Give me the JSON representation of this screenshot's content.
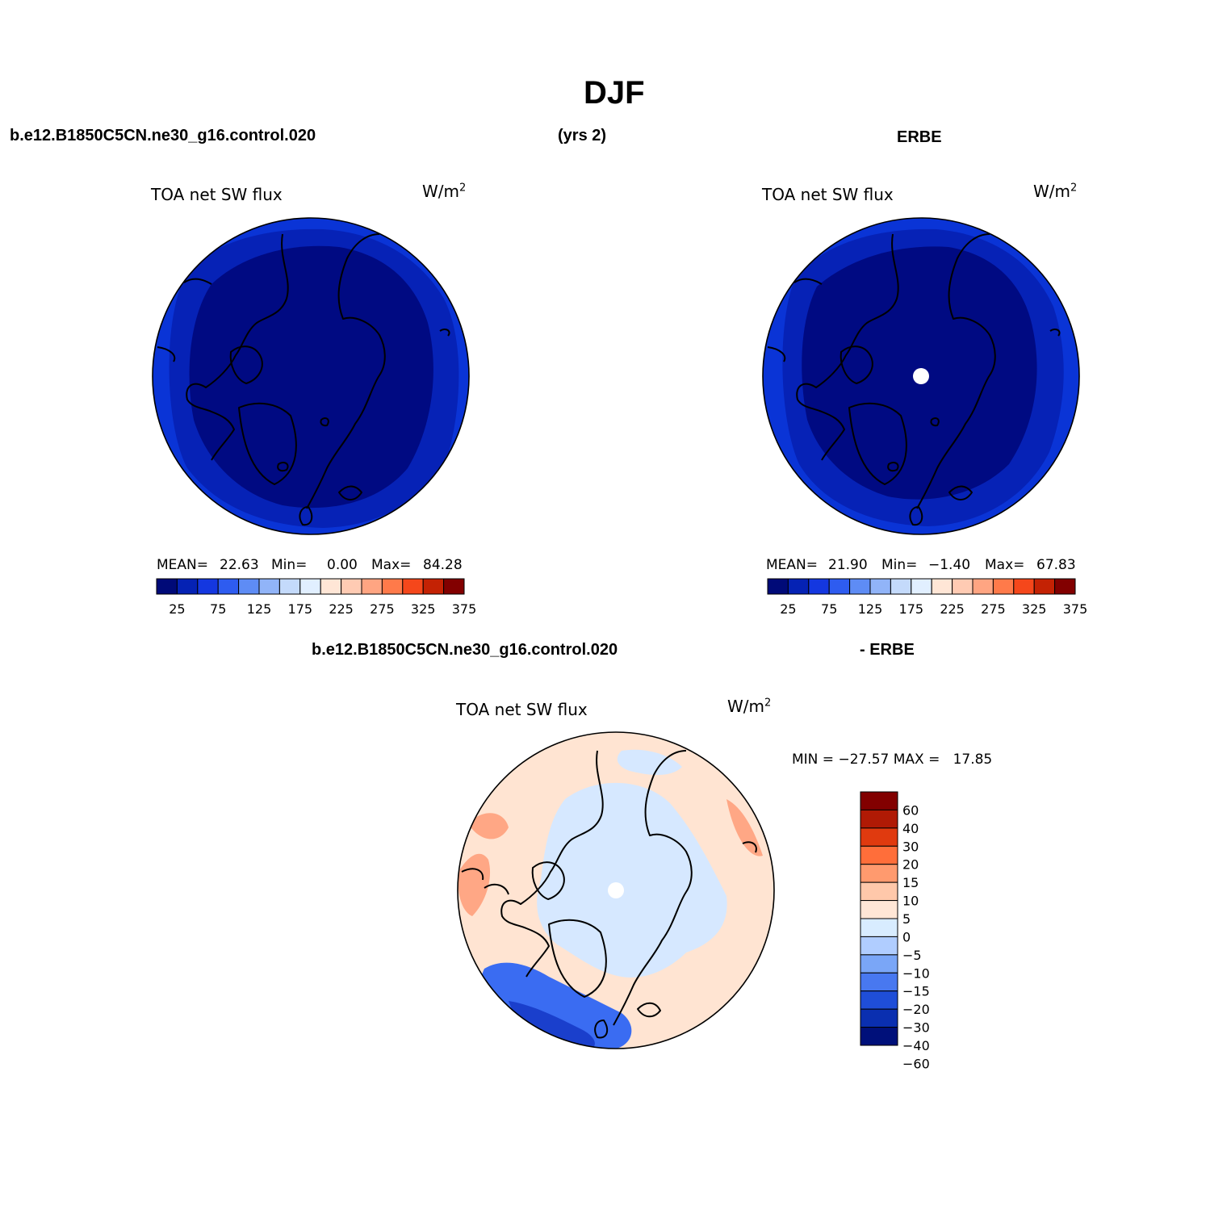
{
  "header": {
    "title": "DJF",
    "case_name": "b.e12.B1850C5CN.ne30_g16.control.020",
    "years": "(yrs 2)",
    "obs_name": "ERBE",
    "diff_case": "b.e12.B1850C5CN.ne30_g16.control.020",
    "diff_obs": "- ERBE"
  },
  "panels": {
    "model": {
      "title": "TOA net SW flux",
      "units": "W/m",
      "units_sup": "2",
      "mean_label": "MEAN=",
      "mean_value": "22.63",
      "min_label": "Min=",
      "min_value": "0.00",
      "max_label": "Max=",
      "max_value": "84.28"
    },
    "obs": {
      "title": "TOA net SW flux",
      "units": "W/m",
      "units_sup": "2",
      "mean_label": "MEAN=",
      "mean_value": "21.90",
      "min_label": "Min=",
      "min_value": "−1.40",
      "max_label": "Max=",
      "max_value": "67.83"
    },
    "diff": {
      "title": "TOA net SW flux",
      "units": "W/m",
      "units_sup": "2",
      "minmax": "MIN = −27.57 MAX =   17.85"
    }
  },
  "colorbar_horizontal": {
    "colors": [
      "#000a78",
      "#0522b4",
      "#1437e0",
      "#2e5cf0",
      "#5e8cf5",
      "#91b4f8",
      "#c4dafb",
      "#e1efff",
      "#ffe6d6",
      "#ffcbb3",
      "#ffa582",
      "#ff7a4a",
      "#f5471b",
      "#c42204",
      "#820000"
    ],
    "labels": [
      "25",
      "75",
      "125",
      "175",
      "225",
      "275",
      "325",
      "375"
    ]
  },
  "colorbar_vertical": {
    "colors": [
      "#820000",
      "#b01a05",
      "#e03a0f",
      "#ff6e3a",
      "#ff9a6e",
      "#ffc8aa",
      "#ffe6d6",
      "#d8ecff",
      "#b0cdff",
      "#7aa6f7",
      "#4878f0",
      "#1f4ed8",
      "#0a2fb0",
      "#00107a"
    ],
    "labels": [
      "60",
      "40",
      "30",
      "20",
      "15",
      "10",
      "5",
      "0",
      "−5",
      "−10",
      "−15",
      "−20",
      "−30",
      "−40",
      "−60"
    ]
  },
  "colors": {
    "model_inner": "#000a82",
    "model_outer": "#0a34d6",
    "model_mid": "#0622b6",
    "diff_bg": "#ffe4d2",
    "diff_light_blue": "#d6e8ff",
    "diff_orange": "#ffa785",
    "diff_blue": "#3a6cf2",
    "diff_dark_blue": "#1a3fcc"
  }
}
